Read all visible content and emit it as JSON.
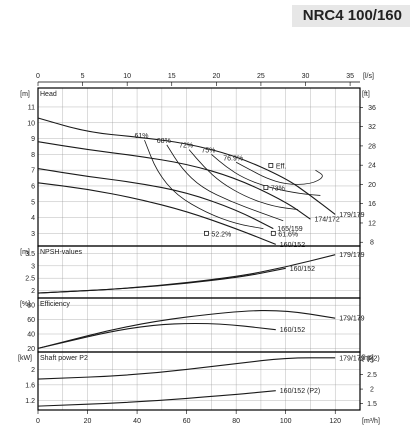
{
  "page": {
    "model_title": "NRC4 100/160"
  },
  "axes": {
    "top": {
      "unit": "[l/s]",
      "ticks": [
        0,
        5,
        10,
        15,
        20,
        25,
        30,
        35
      ]
    },
    "bottom": {
      "unit": "[m³/h]",
      "ticks": [
        0,
        20,
        40,
        60,
        80,
        100,
        120
      ]
    }
  },
  "chart_data": [
    {
      "type": "line",
      "panel": "head",
      "title": "Head",
      "y_unit_left": "[m]",
      "y_unit_right": "[ft]",
      "xlim": [
        0,
        130
      ],
      "ylim": [
        2.2,
        12.2
      ],
      "yticks": [
        3,
        4,
        5,
        6,
        7,
        8,
        9,
        10,
        11
      ],
      "yticks_right": [
        8,
        12,
        16,
        20,
        24,
        28,
        32,
        36
      ],
      "series": [
        {
          "name": "179/179",
          "x": [
            0,
            20,
            40,
            60,
            80,
            100,
            110,
            120
          ],
          "y": [
            10.3,
            9.4,
            9.1,
            8.7,
            7.9,
            6.5,
            5.4,
            4.2
          ]
        },
        {
          "name": "174/172",
          "x": [
            0,
            20,
            40,
            60,
            80,
            100,
            110
          ],
          "y": [
            8.8,
            8.3,
            7.9,
            7.4,
            6.5,
            5.0,
            3.9
          ]
        },
        {
          "name": "165/159",
          "x": [
            0,
            20,
            40,
            60,
            80,
            95
          ],
          "y": [
            7.1,
            6.6,
            6.2,
            5.6,
            4.5,
            3.3
          ]
        },
        {
          "name": "160/152",
          "x": [
            0,
            20,
            40,
            60,
            80,
            96
          ],
          "y": [
            6.2,
            5.8,
            5.2,
            4.4,
            3.3,
            2.3
          ]
        }
      ],
      "efficiency_contours": [
        {
          "label": "61%",
          "x": [
            43,
            48,
            56,
            68,
            80,
            91
          ],
          "y": [
            8.9,
            6.9,
            5.4,
            4.3,
            3.6,
            3.3
          ]
        },
        {
          "label": "68%",
          "x": [
            52,
            58,
            66,
            78,
            90,
            99
          ],
          "y": [
            8.6,
            7.1,
            5.9,
            5.0,
            4.3,
            3.8
          ]
        },
        {
          "label": "72%",
          "x": [
            61,
            67,
            74,
            84,
            95,
            105
          ],
          "y": [
            8.3,
            7.2,
            6.2,
            5.3,
            4.7,
            4.5
          ]
        },
        {
          "label": "75%",
          "x": [
            70,
            76,
            83,
            93,
            106,
            114
          ],
          "y": [
            8.0,
            7.2,
            6.5,
            5.9,
            5.5,
            5.4
          ]
        },
        {
          "label": "76.9%",
          "x": [
            80,
            86,
            92,
            100,
            110,
            116,
            112
          ],
          "y": [
            7.5,
            7.0,
            6.5,
            6.1,
            6.1,
            6.6,
            7.0
          ]
        }
      ],
      "annotations": [
        {
          "text": "Eff.",
          "x": 94,
          "y": 7.3
        },
        {
          "text": "73%",
          "x": 92,
          "y": 5.9
        },
        {
          "text": "61.6%",
          "x": 95,
          "y": 3.0
        },
        {
          "text": "52.2%",
          "x": 68,
          "y": 3.0
        }
      ]
    },
    {
      "type": "line",
      "panel": "npsh",
      "title": "NPSH-values",
      "y_unit_left": "[m]",
      "xlim": [
        0,
        130
      ],
      "ylim": [
        1.7,
        3.8
      ],
      "yticks": [
        2,
        2.5,
        3,
        3.5
      ],
      "series": [
        {
          "name": "179/179",
          "x": [
            0,
            40,
            80,
            100,
            120
          ],
          "y": [
            1.9,
            2.1,
            2.55,
            2.95,
            3.45
          ]
        },
        {
          "name": "160/152",
          "x": [
            0,
            40,
            80,
            100
          ],
          "y": [
            1.9,
            2.1,
            2.5,
            2.9
          ]
        }
      ]
    },
    {
      "type": "line",
      "panel": "efficiency",
      "title": "Efficiency",
      "y_unit_left": "[%]",
      "xlim": [
        0,
        130
      ],
      "ylim": [
        15,
        90
      ],
      "yticks": [
        20,
        40,
        60,
        80
      ],
      "series": [
        {
          "name": "179/179",
          "x": [
            0,
            40,
            80,
            100,
            120
          ],
          "y": [
            20,
            55,
            72,
            73,
            62
          ]
        },
        {
          "name": "160/152",
          "x": [
            0,
            40,
            70,
            96
          ],
          "y": [
            20,
            52,
            56,
            46
          ]
        }
      ]
    },
    {
      "type": "line",
      "panel": "shaft_power",
      "title": "Shaft power P2",
      "y_unit_left": "[kW]",
      "y_unit_right": "[hp]",
      "xlim": [
        0,
        130
      ],
      "ylim": [
        0.95,
        2.45
      ],
      "yticks": [
        1.2,
        1.6,
        2
      ],
      "yticks_right": [
        1.5,
        2,
        2.5,
        3
      ],
      "series": [
        {
          "name": "179/179 (P2)",
          "x": [
            0,
            40,
            80,
            100,
            120
          ],
          "y": [
            1.75,
            1.85,
            2.15,
            2.3,
            2.3
          ]
        },
        {
          "name": "160/152 (P2)",
          "x": [
            0,
            40,
            80,
            96
          ],
          "y": [
            1.05,
            1.15,
            1.35,
            1.45
          ]
        }
      ]
    }
  ],
  "style": {
    "line_color": "#1a1a1a",
    "grid_color": "#9a9a9a",
    "axis_color": "#000000"
  }
}
